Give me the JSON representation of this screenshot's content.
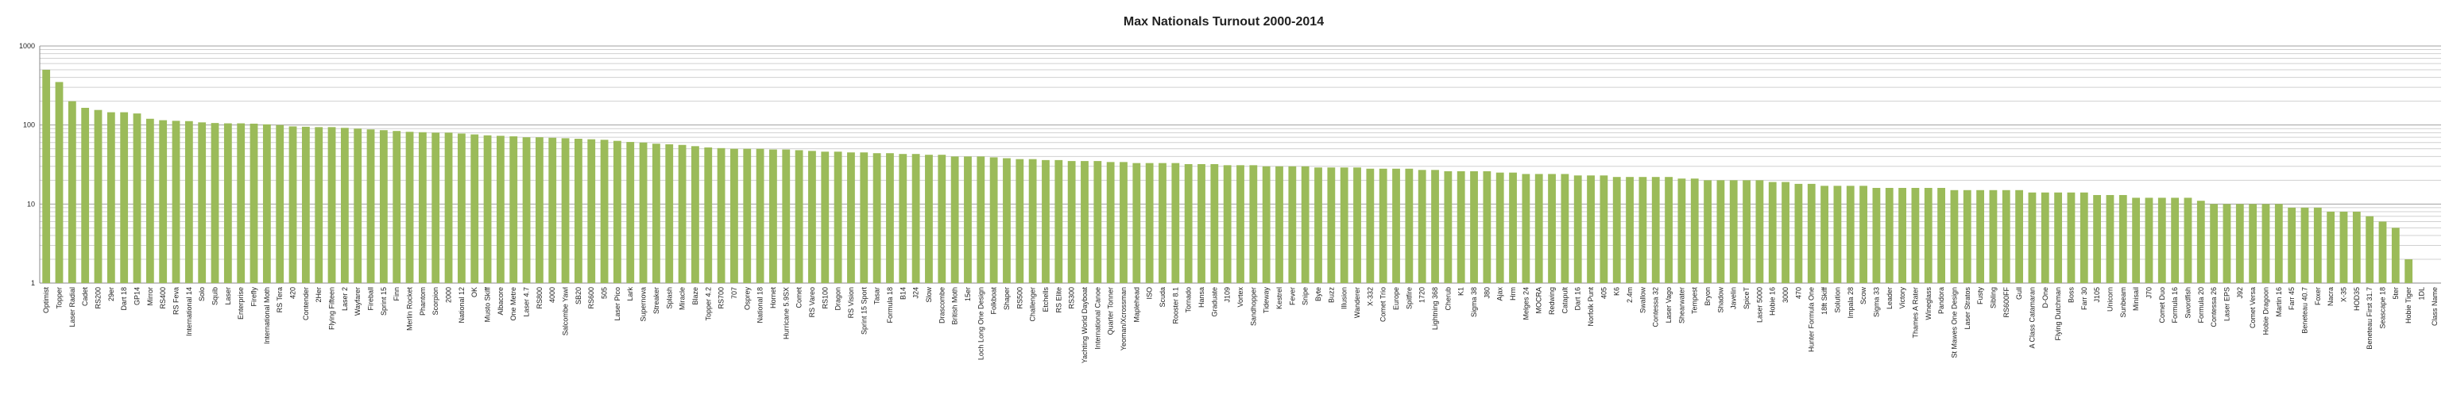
{
  "chart_data": {
    "type": "bar",
    "title": "Max Nationals Turnout 2000-2014",
    "color": "#9bbb59",
    "log_scale": true,
    "grid": true,
    "minor_grid": true,
    "ylim": [
      1,
      1000
    ],
    "yticks": [
      1,
      10,
      100,
      1000
    ],
    "categories": [
      "Optimist",
      "Topper",
      "Laser Radial",
      "Cadet",
      "RS200",
      "29er",
      "Dart 18",
      "GP14",
      "Mirror",
      "RS400",
      "RS Feva",
      "International 14",
      "Solo",
      "Squib",
      "Laser",
      "Enterprise",
      "Firefly",
      "International Moth",
      "RS Tera",
      "420",
      "Contender",
      "2Her",
      "Flying Fifteen",
      "Laser 2",
      "Wayfarer",
      "Fireball",
      "Sprint 15",
      "Finn",
      "Merlin Rocket",
      "Phantom",
      "Scorpion",
      "2000",
      "National 12",
      "OK",
      "Musto Skiff",
      "Albacore",
      "One Metre",
      "Laser 4.7",
      "RS800",
      "4000",
      "Salcombe Yawl",
      "SB20",
      "RS600",
      "505",
      "Laser Pico",
      "Lark",
      "Supernova",
      "Streaker",
      "Splash",
      "Miracle",
      "Blaze",
      "Topper 4.2",
      "RS700",
      "707",
      "Osprey",
      "National 18",
      "Hornet",
      "Hurricane 5.9SX",
      "Comet",
      "RS Vareo",
      "RS100",
      "Dragon",
      "RS Vision",
      "Sprint 15 Sport",
      "Tasar",
      "Formula 18",
      "B14",
      "J24",
      "Slow",
      "Drascombe",
      "British Moth",
      "15er",
      "Loch Long One Design",
      "Folkboat",
      "Shaper",
      "RS500",
      "Challenger",
      "Etchells",
      "RS Elite",
      "RS300",
      "Yachting World Dayboat",
      "International Canoe",
      "Quarter Tonner",
      "Yeoman/Xcrossman",
      "Maplehead",
      "ISO",
      "Scuda",
      "Rooster 8.1",
      "Tornado",
      "Hansa",
      "Graduate",
      "J109",
      "Vortex",
      "Sandhopper",
      "Tideway",
      "Kestrel",
      "Fever",
      "Snipe",
      "Byte",
      "Buzz",
      "Illusion",
      "Wanderer",
      "X-332",
      "Comet Trio",
      "Europe",
      "Spitfire",
      "1720",
      "Lightning 368",
      "Cherub",
      "K1",
      "Sigma 38",
      "J80",
      "Ajax",
      "Hrm",
      "Melges 24",
      "MOCRA",
      "Redwing",
      "Catapult",
      "Dart 16",
      "Norfolk Punt",
      "405",
      "K6",
      "2.4m",
      "Swallow",
      "Contessa 32",
      "Laser Vago",
      "Shearwater",
      "Tempest",
      "Bryon",
      "Shadow",
      "Javelin",
      "SpiceT",
      "Laser 5000",
      "Hobie 16",
      "3000",
      "470",
      "Hunter Formula One",
      "18ft Skiff",
      "Solution",
      "Impala 28",
      "Scow",
      "Sigma 33",
      "Leader",
      "Victory",
      "Thames A Rater",
      "Wineglass",
      "Pandora",
      "St Mawes One Design",
      "Laser Stratos",
      "Fusty",
      "Sibling",
      "RS600FF",
      "Gull",
      "A Class Catamaran",
      "D-One",
      "Flying Dutchman",
      "Boss",
      "Farr 30",
      "J105",
      "Unicorn",
      "Sunbeam",
      "Minisail",
      "J70",
      "Comet Duo",
      "Formula 16",
      "Swordfish",
      "Formula 20",
      "Contessa 26",
      "Laser EPS",
      "J92",
      "Comet Versa",
      "Hobie Dragoon",
      "Martin 16",
      "Farr 45",
      "Beneteau 40.7",
      "Foxer",
      "Nacra",
      "X-35",
      "HOD35",
      "Beneteau First 31.7",
      "Seascape 18",
      "5ter",
      "Hobie Tiger",
      "1DL",
      "Class Name"
    ],
    "values": [
      500,
      350,
      200,
      165,
      155,
      145,
      145,
      140,
      120,
      115,
      113,
      112,
      108,
      106,
      105,
      105,
      104,
      102,
      100,
      96,
      95,
      94,
      94,
      92,
      90,
      88,
      86,
      84,
      82,
      81,
      80,
      80,
      78,
      76,
      74,
      73,
      72,
      70,
      70,
      69,
      68,
      67,
      66,
      65,
      63,
      61,
      60,
      58,
      57,
      56,
      54,
      52,
      51,
      50,
      50,
      50,
      49,
      49,
      48,
      47,
      46,
      46,
      45,
      45,
      44,
      44,
      43,
      43,
      42,
      42,
      40,
      40,
      40,
      39,
      38,
      37,
      37,
      36,
      36,
      35,
      35,
      35,
      34,
      34,
      33,
      33,
      33,
      33,
      32,
      32,
      32,
      31,
      31,
      31,
      30,
      30,
      30,
      30,
      29,
      29,
      29,
      29,
      28,
      28,
      28,
      28,
      27,
      27,
      26,
      26,
      26,
      26,
      25,
      25,
      24,
      24,
      24,
      24,
      23,
      23,
      23,
      22,
      22,
      22,
      22,
      22,
      21,
      21,
      20,
      20,
      20,
      20,
      20,
      19,
      19,
      18,
      18,
      17,
      17,
      17,
      17,
      16,
      16,
      16,
      16,
      16,
      16,
      15,
      15,
      15,
      15,
      15,
      15,
      14,
      14,
      14,
      14,
      14,
      13,
      13,
      13,
      12,
      12,
      12,
      12,
      12,
      11,
      10,
      10,
      10,
      10,
      10,
      10,
      9,
      9,
      9,
      8,
      8,
      8,
      7,
      6,
      5,
      2,
      1,
      null
    ]
  }
}
